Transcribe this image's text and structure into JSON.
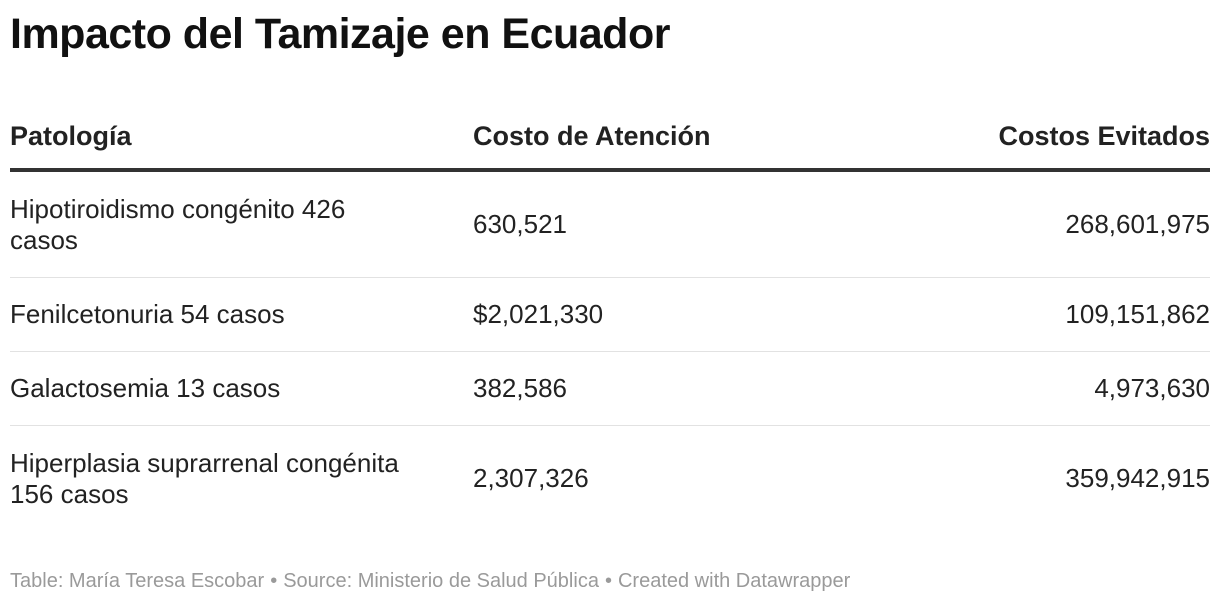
{
  "title": "Impacto del Tamizaje en Ecuador",
  "chart_data": {
    "type": "table",
    "title": "Impacto del Tamizaje en Ecuador",
    "columns": [
      "Patología",
      "Costo de Atención",
      "Costos Evitados"
    ],
    "rows": [
      {
        "patologia": "Hipotiroidismo congénito 426 casos",
        "costo_atencion": "630,521",
        "costos_evitados": "268,601,975"
      },
      {
        "patologia": "Fenilcetonuria 54 casos",
        "costo_atencion": "$2,021,330",
        "costos_evitados": "109,151,862"
      },
      {
        "patologia": "Galactosemia 13 casos",
        "costo_atencion": "382,586",
        "costos_evitados": "4,973,630"
      },
      {
        "patologia": "Hiperplasia suprarrenal congénita 156 casos",
        "costo_atencion": "2,307,326",
        "costos_evitados": "359,942,915"
      }
    ]
  },
  "footer": {
    "table_credit": "Table: María Teresa Escobar",
    "source": "Source: Ministerio de Salud Pública",
    "created_with": "Created with Datawrapper",
    "separator": "•"
  }
}
